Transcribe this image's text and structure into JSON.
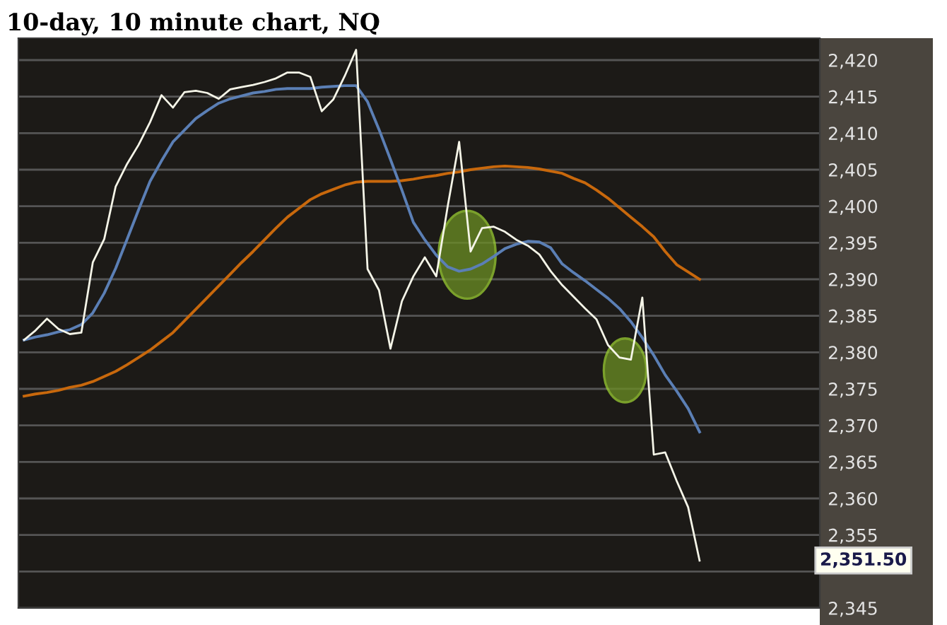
{
  "chart_data": {
    "type": "line",
    "title": "10-day, 10 minute chart, NQ",
    "categories": [
      null,
      null,
      null,
      null,
      null,
      null,
      null,
      null,
      null,
      null,
      null,
      null,
      null,
      null,
      null,
      null,
      null,
      null,
      null,
      null,
      null,
      null,
      null,
      null,
      null,
      null,
      null,
      null,
      null,
      null,
      null,
      null,
      null,
      null,
      null,
      null,
      null,
      null,
      null,
      null,
      null,
      null,
      null,
      null,
      null,
      null,
      null,
      null,
      null,
      null,
      null,
      null,
      null,
      null,
      null,
      null,
      null,
      null,
      null,
      null,
      null,
      null,
      null,
      null,
      null,
      null,
      null,
      null,
      null,
      null
    ],
    "ylim": [
      2345,
      2423
    ],
    "yticks": [
      {
        "value": 2345,
        "label": "2,345"
      },
      {
        "value": 2350,
        "label": null
      },
      {
        "value": 2355,
        "label": "2,355"
      },
      {
        "value": 2360,
        "label": "2,360"
      },
      {
        "value": 2365,
        "label": "2,365"
      },
      {
        "value": 2370,
        "label": "2,370"
      },
      {
        "value": 2375,
        "label": "2,375"
      },
      {
        "value": 2380,
        "label": "2,380"
      },
      {
        "value": 2385,
        "label": "2,385"
      },
      {
        "value": 2390,
        "label": "2,390"
      },
      {
        "value": 2395,
        "label": "2,395"
      },
      {
        "value": 2400,
        "label": "2,400"
      },
      {
        "value": 2405,
        "label": "2,405"
      },
      {
        "value": 2410,
        "label": "2,410"
      },
      {
        "value": 2415,
        "label": "2,415"
      },
      {
        "value": 2420,
        "label": "2,420"
      }
    ],
    "tick_labels": "y",
    "grid": "y",
    "line_style": "solid",
    "series": [
      {
        "color": "#c8680c",
        "values": [
          2374.0,
          2374.3,
          2374.5,
          2374.8,
          2375.2,
          2375.5,
          2376.0,
          2376.7,
          2377.4,
          2378.3,
          2379.3,
          2380.3,
          2381.5,
          2382.7,
          2384.3,
          2385.9,
          2387.5,
          2389.1,
          2390.7,
          2392.3,
          2393.8,
          2395.4,
          2397.0,
          2398.5,
          2399.7,
          2400.9,
          2401.7,
          2402.3,
          2402.9,
          2403.3,
          2403.4,
          2403.4,
          2403.4,
          2403.5,
          2403.7,
          2404.0,
          2404.2,
          2404.5,
          2404.7,
          2405.0,
          2405.2,
          2405.4,
          2405.5,
          2405.4,
          2405.3,
          2405.1,
          2404.8,
          2404.5,
          2403.8,
          2403.2,
          2402.2,
          2401.1,
          2399.8,
          2398.5,
          2397.2,
          2395.8,
          2393.8,
          2392.0,
          2391.0,
          2390.0,
          null,
          null,
          null,
          null,
          null,
          null,
          null,
          null,
          null,
          null
        ]
      },
      {
        "color": "#5b7fb5",
        "values": [
          2381.7,
          2382.1,
          2382.4,
          2382.8,
          2383.1,
          2383.8,
          2385.4,
          2388.1,
          2391.5,
          2395.5,
          2399.5,
          2403.4,
          2406.2,
          2408.8,
          2410.4,
          2412.0,
          2413.1,
          2414.1,
          2414.7,
          2415.1,
          2415.5,
          2415.7,
          2416.0,
          2416.1,
          2416.1,
          2416.1,
          2416.3,
          2416.4,
          2416.5,
          2416.5,
          2414.3,
          2410.5,
          2406.4,
          2402.2,
          2397.8,
          2395.4,
          2393.3,
          2391.7,
          2391.1,
          2391.4,
          2392.1,
          2393.1,
          2394.2,
          2394.8,
          2395.2,
          2395.1,
          2394.3,
          2392.1,
          2390.9,
          2389.8,
          2388.6,
          2387.4,
          2386.0,
          2384.2,
          2382.0,
          2379.6,
          2376.9,
          2374.7,
          2372.3,
          2369.1,
          null,
          null,
          null,
          null,
          null,
          null,
          null,
          null,
          null,
          null
        ]
      },
      {
        "color": "#f5f5e8",
        "values": [
          2381.7,
          2383.0,
          2384.6,
          2383.2,
          2382.5,
          2382.7,
          2392.3,
          2395.5,
          2402.7,
          2405.8,
          2408.4,
          2411.5,
          2415.2,
          2413.5,
          2415.6,
          2415.8,
          2415.5,
          2414.7,
          2416.0,
          2416.3,
          2416.6,
          2417.0,
          2417.5,
          2418.3,
          2418.3,
          2417.7,
          2413.0,
          2414.6,
          2417.8,
          2421.4,
          2391.4,
          2388.5,
          2380.5,
          2387.0,
          2390.4,
          2393.0,
          2390.4,
          2400.0,
          2408.8,
          2393.8,
          2397.0,
          2397.2,
          2396.5,
          2395.4,
          2394.6,
          2393.4,
          2391.1,
          2389.2,
          2387.6,
          2386.0,
          2384.5,
          2381.0,
          2379.3,
          2379.0,
          2387.5,
          2366.0,
          2366.3,
          2362.4,
          2358.8,
          2351.5,
          null,
          null,
          null,
          null,
          null,
          null,
          null,
          null,
          null,
          null
        ]
      }
    ],
    "annotations": [
      "2,351.50"
    ]
  }
}
